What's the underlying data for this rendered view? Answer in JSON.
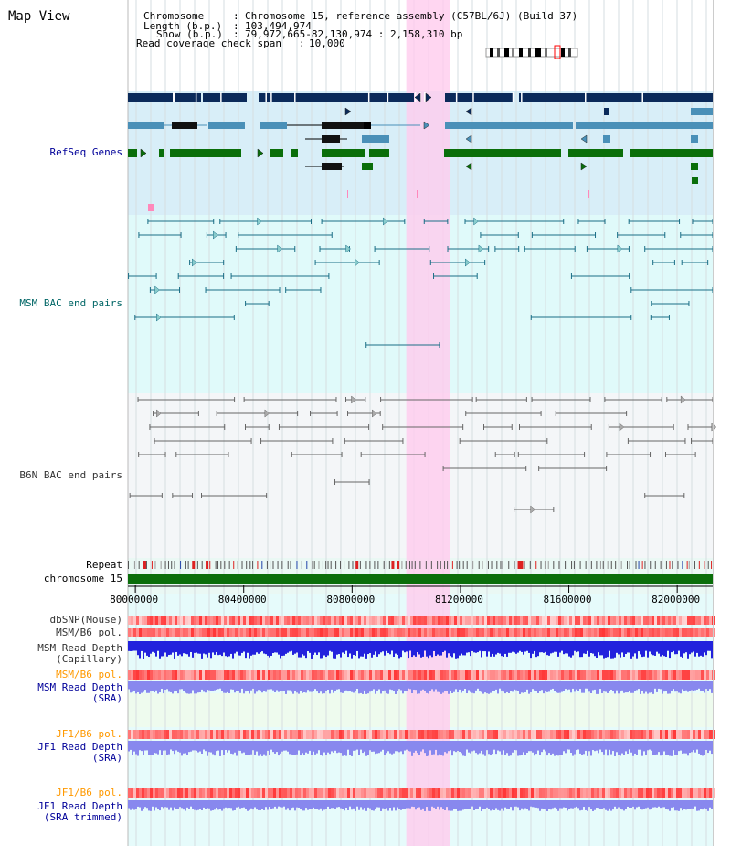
{
  "page": {
    "title": "Map View"
  },
  "header": {
    "chromosome_key": "Chromosome",
    "chromosome_val": "Chromosome 15, reference assembly (C57BL/6J) (Build 37)",
    "length_key": "Length (b.p.)",
    "length_val": "103,494,974",
    "show_key": "Show (b.p.)",
    "show_val": "79,972,665-82,130,974 : 2,158,310 bp",
    "coverage_key": "Read coverage check span",
    "coverage_val": "10,000"
  },
  "tracks": {
    "refseq": {
      "label": "RefSeq Genes",
      "color": "#000099"
    },
    "msm_bac": {
      "label": "MSM BAC end pairs",
      "color": "#006666"
    },
    "b6n_bac": {
      "label": "B6N BAC end pairs",
      "color": "#333333"
    },
    "repeat": {
      "label": "Repeat",
      "color": "#000000"
    },
    "chrom": {
      "label": "chromosome 15",
      "color": "#000000"
    },
    "dbsnp": {
      "label": "dbSNP(Mouse)",
      "color": "#333333"
    },
    "msm_b6_pol": {
      "label": "MSM/B6 pol.",
      "color": "#333333"
    },
    "msm_depth_cap": {
      "label": "MSM Read Depth\n(Capillary)",
      "color": "#333333"
    },
    "msm_b6_pol2": {
      "label": "MSM/B6 pol.",
      "color": "#ff9900"
    },
    "msm_depth_sra": {
      "label": "MSM Read Depth\n(SRA)",
      "color": "#000099"
    },
    "jf1_b6_pol": {
      "label": "JF1/B6 pol.",
      "color": "#ff9900"
    },
    "jf1_depth_sra": {
      "label": "JF1 Read Depth\n(SRA)",
      "color": "#000099"
    },
    "jf1_b6_pol2": {
      "label": "JF1/B6 pol.",
      "color": "#ff9900"
    },
    "jf1_depth_trim": {
      "label": "JF1 Read Depth\n(SRA trimmed)",
      "color": "#000099"
    }
  },
  "axis": {
    "ticks": [
      "80000000",
      "80400000",
      "80800000",
      "81200000",
      "81600000",
      "82000000"
    ],
    "tick_values": [
      80000000,
      80400000,
      80800000,
      81200000,
      81600000,
      82000000
    ],
    "range": [
      79972665,
      82130974
    ]
  },
  "highlight": {
    "start": 81000000,
    "end": 81160000,
    "color": "#ffccee"
  },
  "colors": {
    "refseq_bg": "#d8eef8",
    "msm_bg": "#e0fafa",
    "b6n_bg": "#f4f6f8",
    "lower_bg": "#e6fbfb",
    "gene_navy": "#0b2a5a",
    "gene_steel": "#4a90b8",
    "gene_green": "#0a6e0a",
    "chrom_green": "#0a6e0a",
    "bac_teal": "#1a6e86",
    "bac_gray": "#666666",
    "pol_red": "#ee3333",
    "depth_blue": "#2222dd",
    "depth_lav": "#8888ee"
  }
}
